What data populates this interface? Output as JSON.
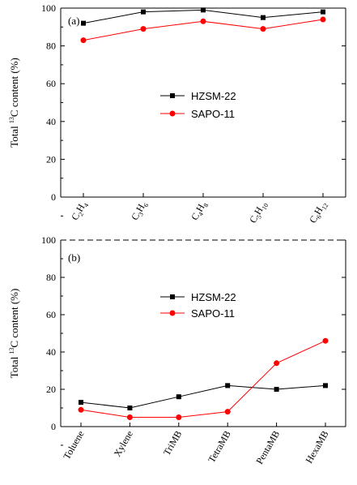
{
  "chart_data": [
    {
      "type": "line",
      "panel_label": "(a)",
      "ylabel_prefix": "Total ",
      "ylabel_sup": "13",
      "ylabel_suffix": "C content (%)",
      "ylim": [
        0,
        100
      ],
      "yticks": [
        0,
        20,
        40,
        60,
        80,
        100
      ],
      "categories": [
        {
          "base": "C",
          "sub1": "2",
          "mid": "H",
          "sub2": "4"
        },
        {
          "base": "C",
          "sub1": "3",
          "mid": "H",
          "sub2": "6"
        },
        {
          "base": "C",
          "sub1": "4",
          "mid": "H",
          "sub2": "8"
        },
        {
          "base": "C",
          "sub1": "5",
          "mid": "H",
          "sub2": "10"
        },
        {
          "base": "C",
          "sub1": "6",
          "mid": "H",
          "sub2": "12"
        }
      ],
      "legend_position": "center",
      "series": [
        {
          "name": "HZSM-22",
          "color": "#000000",
          "marker": "square",
          "values": [
            92,
            98,
            99,
            95,
            98
          ]
        },
        {
          "name": "SAPO-11",
          "color": "#ff0000",
          "marker": "circle",
          "values": [
            83,
            89,
            93,
            89,
            94
          ]
        }
      ]
    },
    {
      "type": "line",
      "panel_label": "(b)",
      "ylabel_prefix": "Total ",
      "ylabel_sup": "13",
      "ylabel_suffix": "C content (%)",
      "ylim": [
        0,
        100
      ],
      "yticks": [
        0,
        20,
        40,
        60,
        80,
        100
      ],
      "categories": [
        "Toluene",
        "Xylene",
        "TriMB",
        "TetraMB",
        "PentaMB",
        "HexaMB"
      ],
      "legend_position": "upper-center",
      "series": [
        {
          "name": "HZSM-22",
          "color": "#000000",
          "marker": "square",
          "values": [
            13,
            10,
            16,
            22,
            20,
            22
          ]
        },
        {
          "name": "SAPO-11",
          "color": "#ff0000",
          "marker": "circle",
          "values": [
            9,
            5,
            5,
            8,
            34,
            46
          ]
        }
      ]
    }
  ]
}
